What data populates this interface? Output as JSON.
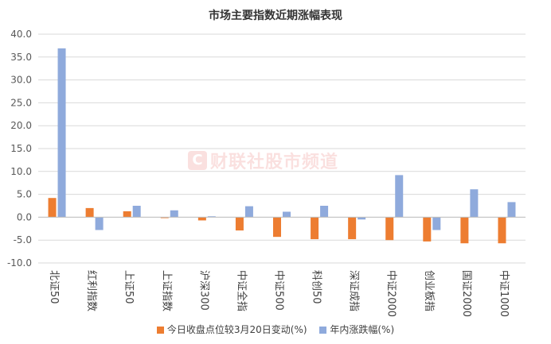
{
  "chart_data": {
    "type": "bar",
    "title": "市场主要指数近期涨幅表现",
    "categories": [
      "北证50",
      "红利指数",
      "上证50",
      "上证指数",
      "沪深300",
      "中证全指",
      "中证500",
      "科创50",
      "深证成指",
      "中证2000",
      "创业板指",
      "国证2000",
      "中证1000"
    ],
    "series": [
      {
        "name": "今日收盘点位较3月20日变动(%)",
        "color": "#ed7d31",
        "values": [
          4.2,
          2.0,
          1.3,
          -0.2,
          -0.7,
          -2.9,
          -4.3,
          -4.8,
          -4.8,
          -5.0,
          -5.3,
          -5.7,
          -5.7
        ]
      },
      {
        "name": "年内涨跌幅(%)",
        "color": "#8faadc",
        "values": [
          36.9,
          -2.8,
          2.5,
          1.5,
          0.2,
          2.4,
          1.2,
          2.5,
          -0.5,
          9.2,
          -2.8,
          6.1,
          3.3
        ]
      }
    ],
    "yticks": [
      "40.0",
      "35.0",
      "30.0",
      "25.0",
      "20.0",
      "15.0",
      "10.0",
      "5.0",
      "0.0",
      "-5.0",
      "-10.0"
    ],
    "ylim": [
      -10,
      40
    ],
    "xlabel": "",
    "ylabel": "",
    "grid": true,
    "legend_position": "bottom"
  },
  "watermark": {
    "logo_letter": "C",
    "text": "财联社股市频道"
  }
}
